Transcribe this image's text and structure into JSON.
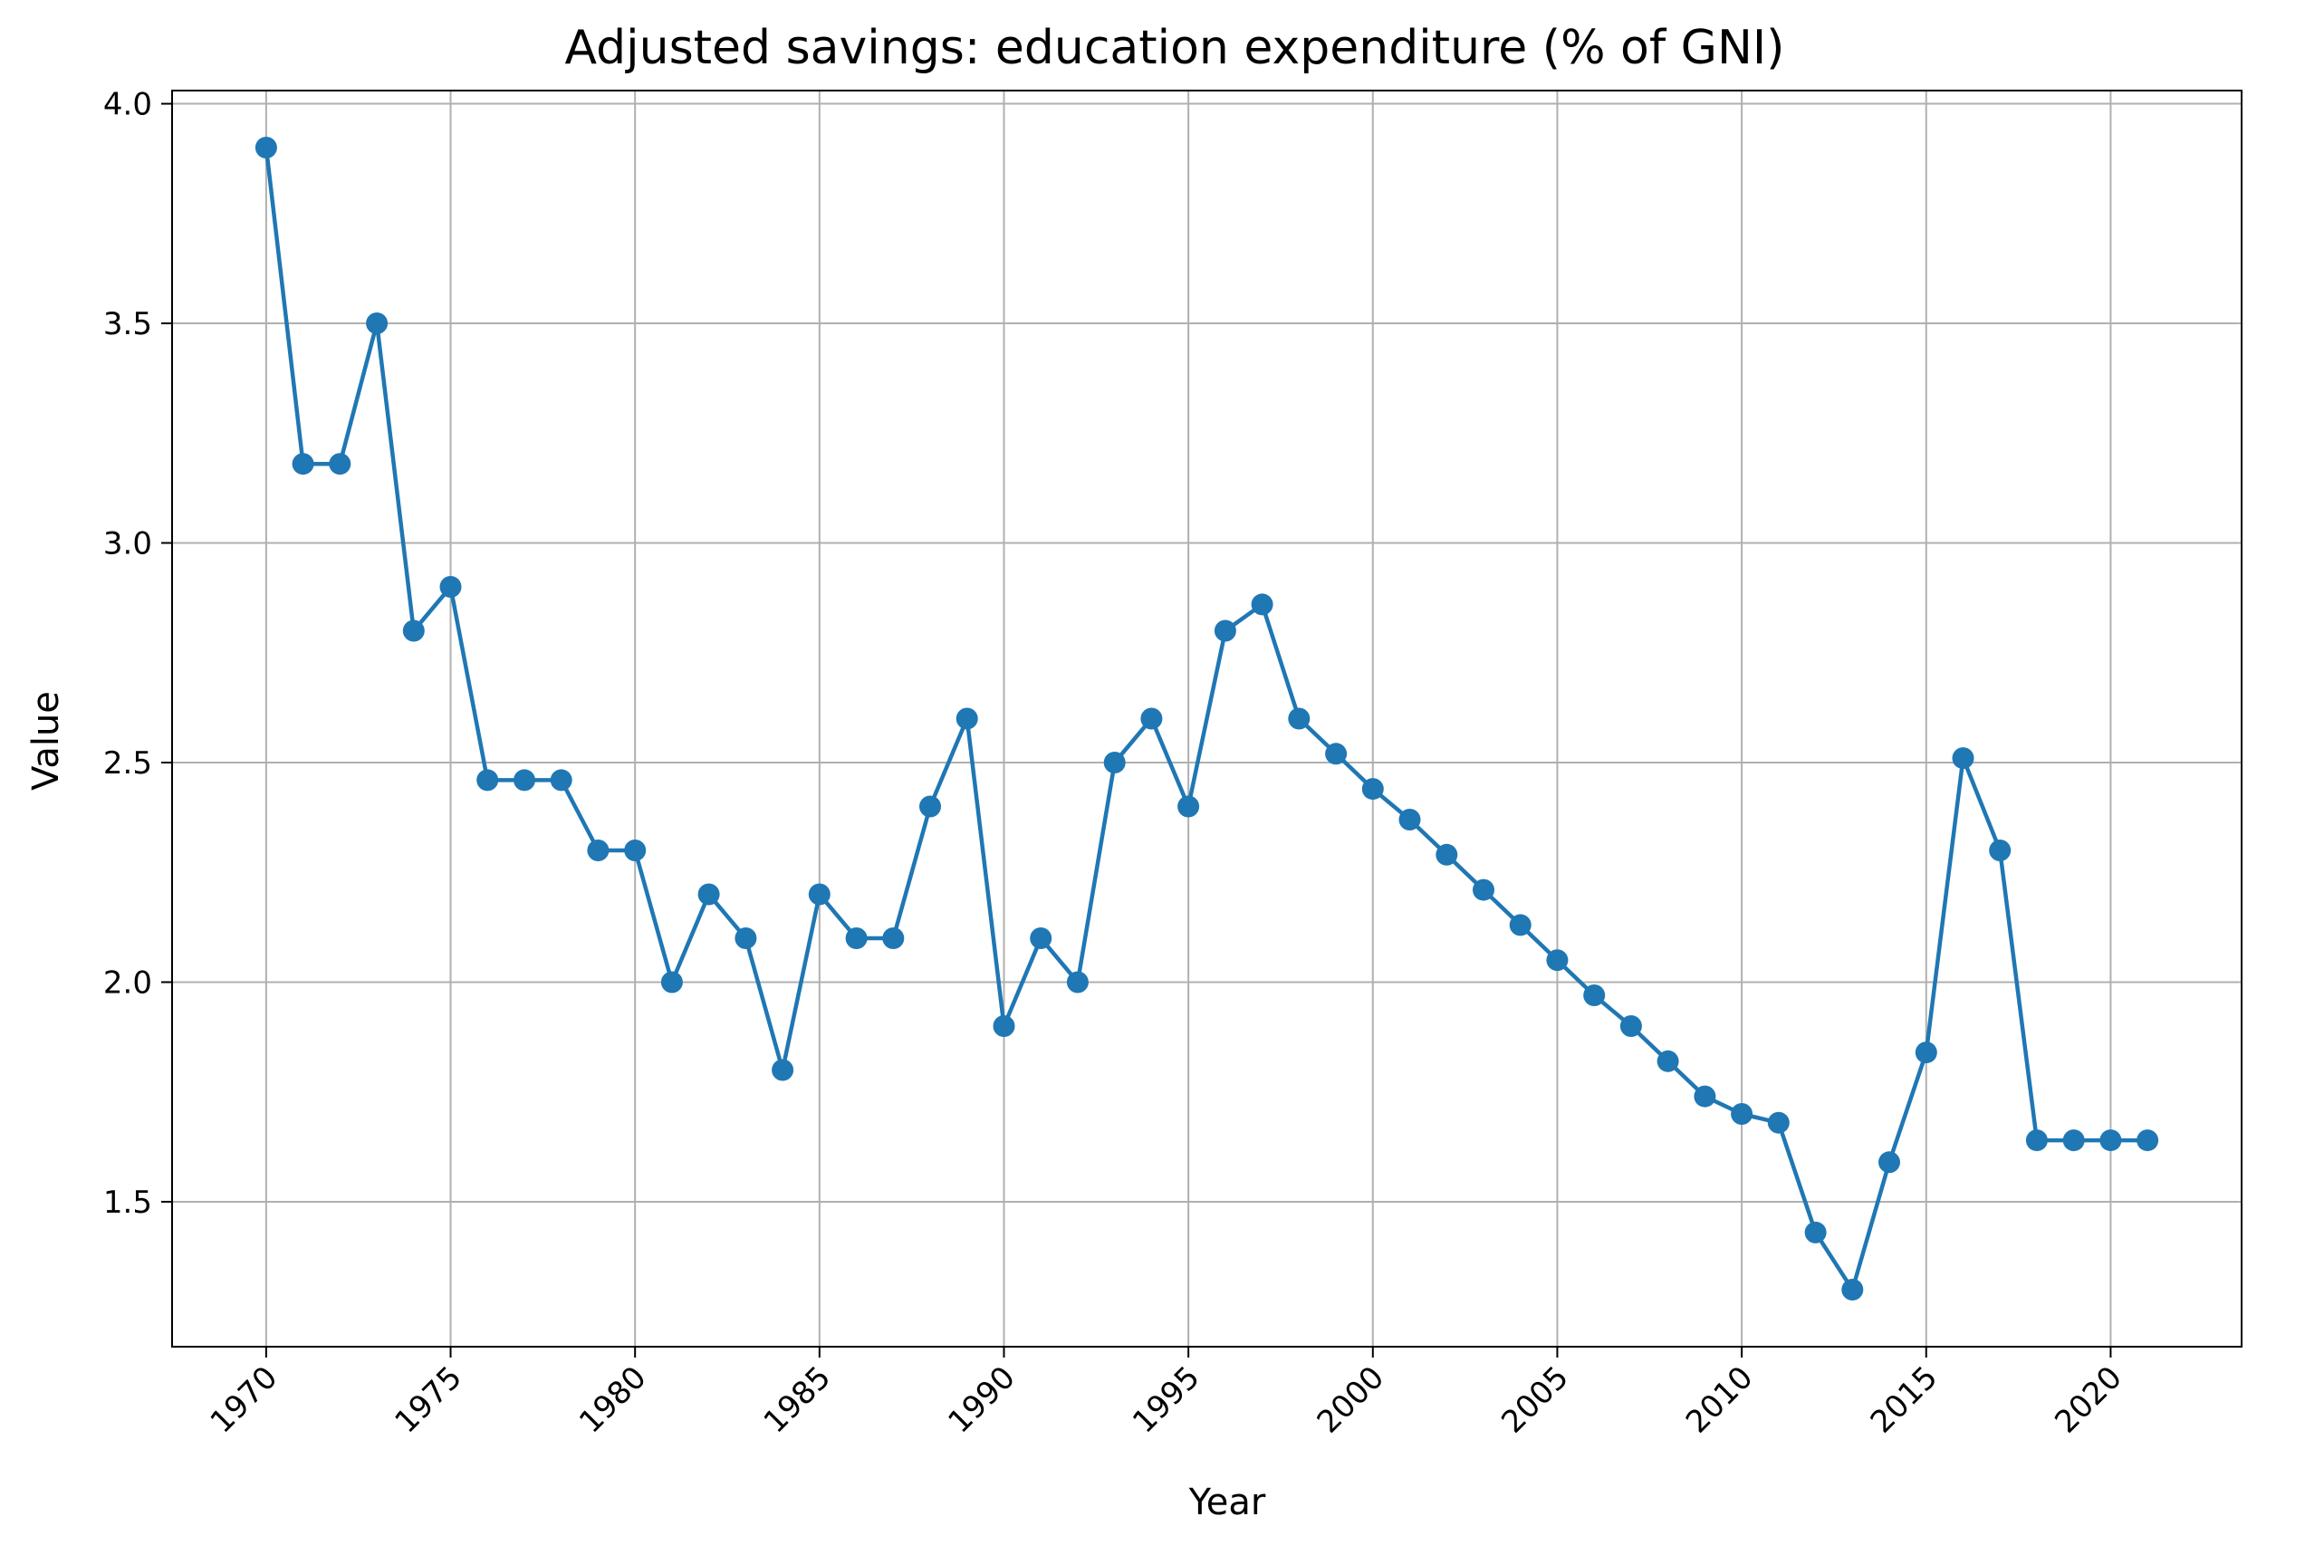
{
  "chart_data": {
    "type": "line",
    "title": "Adjusted savings: education expenditure (% of GNI)",
    "xlabel": "Year",
    "ylabel": "Value",
    "xlim": [
      1967.45,
      2023.55
    ],
    "ylim": [
      1.17,
      4.03
    ],
    "xticks": [
      1970,
      1975,
      1980,
      1985,
      1990,
      1995,
      2000,
      2005,
      2010,
      2015,
      2020
    ],
    "yticks": [
      1.5,
      2.0,
      2.5,
      3.0,
      3.5,
      4.0
    ],
    "ytick_labels": [
      "1.5",
      "2.0",
      "2.5",
      "3.0",
      "3.5",
      "4.0"
    ],
    "grid": true,
    "line_color": "#1f77b4",
    "marker": "circle",
    "series": [
      {
        "x": [
          1970,
          1971,
          1972,
          1973,
          1974,
          1975,
          1976,
          1977,
          1978,
          1979,
          1980,
          1981,
          1982,
          1983,
          1984,
          1985,
          1986,
          1987,
          1988,
          1989,
          1990,
          1991,
          1992,
          1993,
          1994,
          1995,
          1996,
          1997,
          1998,
          1999,
          2000,
          2001,
          2002,
          2003,
          2004,
          2005,
          2006,
          2007,
          2008,
          2009,
          2010,
          2011,
          2012,
          2013,
          2014,
          2015,
          2016,
          2017,
          2018,
          2019,
          2020,
          2021
        ],
        "values": [
          3.9,
          3.18,
          3.18,
          3.5,
          2.8,
          2.9,
          2.46,
          2.46,
          2.46,
          2.3,
          2.3,
          2.0,
          2.2,
          2.1,
          1.8,
          2.2,
          2.1,
          2.1,
          2.4,
          2.6,
          1.9,
          2.1,
          2.0,
          2.5,
          2.6,
          2.4,
          2.8,
          2.86,
          2.6,
          2.52,
          2.44,
          2.37,
          2.29,
          2.21,
          2.13,
          2.05,
          1.97,
          1.9,
          1.82,
          1.74,
          1.7,
          1.68,
          1.43,
          1.3,
          1.59,
          1.84,
          2.51,
          2.3,
          1.64,
          1.64,
          1.64,
          1.64
        ]
      }
    ]
  }
}
